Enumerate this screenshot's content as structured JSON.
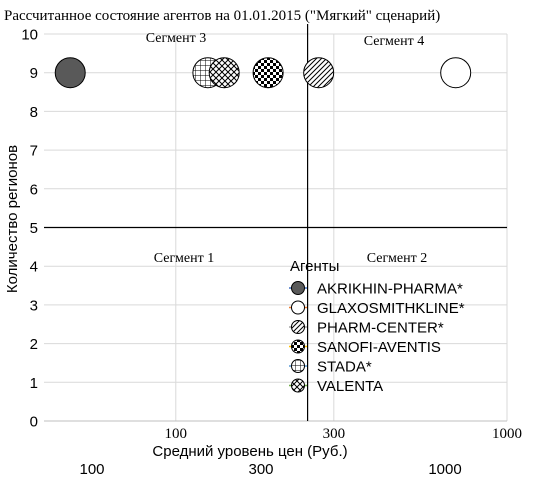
{
  "chart_data": {
    "type": "scatter",
    "title": "Рассчитанное состояние агентов на 01.01.2015 (\"Мягкий\" сценарий)",
    "xlabel": "Средний уровень цен (Руб.)",
    "ylabel": "Количество регионов",
    "x_scale": "log",
    "xlim": [
      40,
      1000
    ],
    "ylim": [
      0,
      10
    ],
    "x_ticks": [
      100,
      300,
      1000
    ],
    "x_tick_labels": [
      "100",
      "300",
      "1000"
    ],
    "y_ticks": [
      0,
      1,
      2,
      3,
      4,
      5,
      6,
      7,
      8,
      9,
      10
    ],
    "y_tick_labels": [
      "0",
      "1",
      "2",
      "3",
      "4",
      "5",
      "6",
      "7",
      "8",
      "9",
      "10"
    ],
    "secondary_x_tick_labels": [
      "100",
      "300",
      "1000"
    ],
    "grid": true,
    "segment_dividers": {
      "x": 250,
      "y": 5
    },
    "segments": [
      {
        "label": "Сегмент 1",
        "quadrant": "bottom-left"
      },
      {
        "label": "Сегмент 2",
        "quadrant": "bottom-right"
      },
      {
        "label": "Сегмент 3",
        "quadrant": "top-left"
      },
      {
        "label": "Сегмент 4",
        "quadrant": "top-right"
      }
    ],
    "legend": {
      "title": "Агенты",
      "placement": "bottom-right"
    },
    "series": [
      {
        "name": "AKRIKHIN-PHARMA*",
        "pattern": "solid-dark",
        "x": 48,
        "y": 9
      },
      {
        "name": "GLAXOSMITHKLINE*",
        "pattern": "white",
        "x": 700,
        "y": 9
      },
      {
        "name": "PHARM-CENTER*",
        "pattern": "diagonal-lines",
        "x": 270,
        "y": 9
      },
      {
        "name": "SANOFI-AVENTIS",
        "pattern": "checker",
        "x": 190,
        "y": 9
      },
      {
        "name": "STADA*",
        "pattern": "grid",
        "x": 125,
        "y": 9
      },
      {
        "name": "VALENTA",
        "pattern": "crosshatch",
        "x": 140,
        "y": 9
      }
    ]
  }
}
